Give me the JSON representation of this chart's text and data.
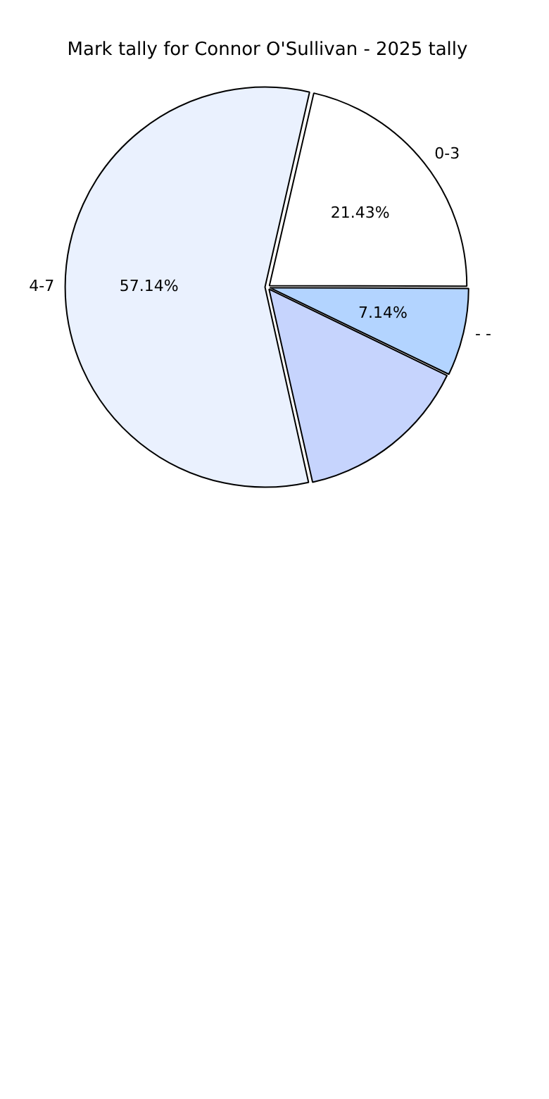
{
  "chart_data": {
    "type": "pie",
    "title": "Mark tally for Connor O'Sullivan - 2025 tally",
    "categories": [
      "0-3",
      "- -",
      null,
      "4-7"
    ],
    "values": [
      21.43,
      7.14,
      14.29,
      57.14
    ],
    "colors": [
      "#ffffff",
      "#b3d4ff",
      "#c6d4fd",
      "#eaf1fe"
    ],
    "value_labels": [
      "21.43%",
      "7.14%",
      null,
      "57.14%"
    ],
    "legend": false
  }
}
